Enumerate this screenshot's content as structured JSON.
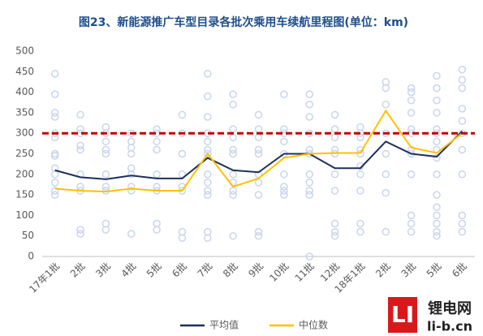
{
  "chart_data": {
    "type": "line",
    "title": "图23、新能源推广车型目录各批次乘用车续航里程图(单位：km)",
    "categories": [
      "17年1批",
      "2批",
      "3批",
      "4批",
      "5批",
      "6批",
      "7批",
      "8批",
      "9批",
      "10批",
      "11批",
      "12批",
      "18年1批",
      "2批",
      "3批",
      "5批",
      "6批"
    ],
    "series": [
      {
        "name": "平均值",
        "color": "#1f2f5c",
        "values": [
          210,
          193,
          188,
          197,
          190,
          190,
          240,
          210,
          205,
          250,
          250,
          215,
          215,
          280,
          250,
          243,
          305
        ]
      },
      {
        "name": "中位数",
        "color": "#ffc000",
        "values": [
          165,
          160,
          158,
          165,
          160,
          160,
          250,
          170,
          190,
          240,
          250,
          252,
          252,
          355,
          265,
          252,
          300
        ]
      }
    ],
    "points": {
      "color": "#c9d5ec",
      "values": [
        [
          445,
          395,
          350,
          340,
          300,
          290,
          250,
          245,
          215,
          200,
          180,
          160,
          150
        ],
        [
          345,
          310,
          300,
          270,
          260,
          200,
          170,
          160,
          65,
          55
        ],
        [
          315,
          300,
          280,
          260,
          250,
          200,
          170,
          160,
          80,
          65
        ],
        [
          300,
          280,
          265,
          250,
          215,
          200,
          170,
          160,
          55
        ],
        [
          310,
          300,
          280,
          260,
          200,
          170,
          160,
          80,
          65
        ],
        [
          345,
          300,
          250,
          200,
          170,
          160,
          60,
          45
        ],
        [
          445,
          390,
          340,
          300,
          280,
          260,
          250,
          200,
          180,
          160,
          150,
          60,
          45
        ],
        [
          395,
          370,
          310,
          290,
          260,
          250,
          200,
          180,
          160,
          150,
          50
        ],
        [
          345,
          310,
          290,
          260,
          250,
          200,
          180,
          150,
          60,
          50
        ],
        [
          395,
          310,
          300,
          280,
          250,
          200,
          170,
          160,
          150
        ],
        [
          395,
          370,
          340,
          300,
          260,
          250,
          200,
          180,
          160,
          150,
          0
        ],
        [
          345,
          310,
          290,
          260,
          250,
          200,
          160,
          80,
          60,
          50
        ],
        [
          315,
          300,
          290,
          260,
          250,
          220,
          200,
          160,
          80,
          60
        ],
        [
          425,
          410,
          370,
          300,
          250,
          200,
          155,
          60
        ],
        [
          410,
          400,
          380,
          350,
          310,
          300,
          260,
          250,
          200,
          100,
          80,
          60
        ],
        [
          440,
          410,
          380,
          350,
          310,
          300,
          280,
          260,
          240,
          200,
          150,
          120,
          100,
          80,
          60,
          50
        ],
        [
          455,
          430,
          410,
          360,
          330,
          300,
          260,
          200,
          100,
          80,
          60
        ]
      ]
    },
    "reference_line": {
      "value": 300,
      "color": "#c00000"
    },
    "ylim": [
      0,
      500
    ],
    "yticks": [
      0,
      50,
      100,
      150,
      200,
      250,
      300,
      350,
      400,
      450,
      500
    ],
    "grid": false
  },
  "watermark": {
    "logo": "LI",
    "name": "锂电网",
    "site": "li-b.cn"
  }
}
